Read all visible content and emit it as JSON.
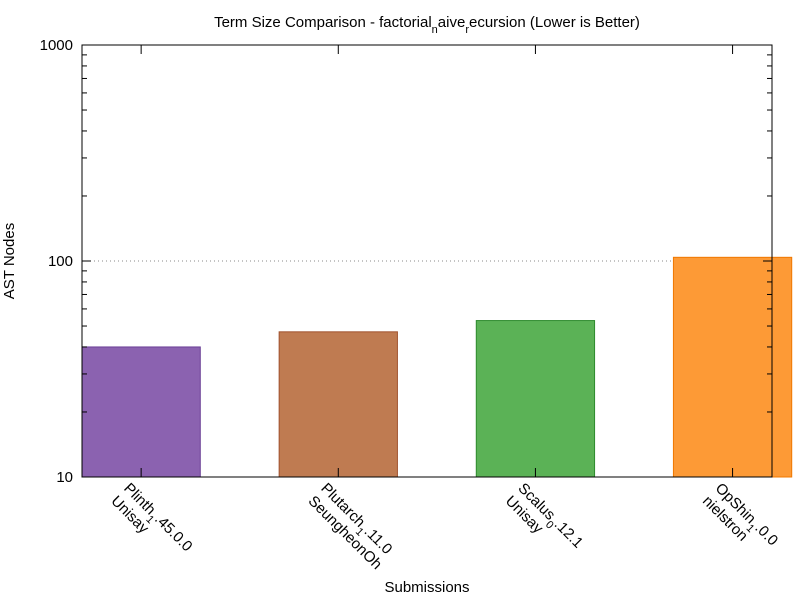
{
  "chart_data": {
    "type": "bar",
    "title_parts": [
      {
        "t": "Term Size Comparison - factorial",
        "sub": false
      },
      {
        "t": "n",
        "sub": true
      },
      {
        "t": "aive",
        "sub": false
      },
      {
        "t": "r",
        "sub": true
      },
      {
        "t": "ecursion (Lower is Better)",
        "sub": false
      }
    ],
    "xlabel": "Submissions",
    "ylabel": "AST Nodes",
    "yscale": "log",
    "ylim": [
      10,
      1000
    ],
    "yticks": [
      {
        "value": 10,
        "label": "10"
      },
      {
        "value": 100,
        "label": "100"
      },
      {
        "value": 1000,
        "label": "1000"
      }
    ],
    "grid": "y-major",
    "categories": [
      {
        "line1": [
          {
            "t": "Plinth",
            "sub": false
          },
          {
            "t": "1",
            "sub": true
          },
          {
            "t": ".45.0.0",
            "sub": false
          }
        ],
        "line2": "Unisay"
      },
      {
        "line1": [
          {
            "t": "Plutarch",
            "sub": false
          },
          {
            "t": "1",
            "sub": true
          },
          {
            "t": ".11.0",
            "sub": false
          }
        ],
        "line2": "SeungheonOh"
      },
      {
        "line1": [
          {
            "t": "Scalus",
            "sub": false
          },
          {
            "t": "0",
            "sub": true
          },
          {
            "t": ".12.1",
            "sub": false
          }
        ],
        "line2": "Unisay"
      },
      {
        "line1": [
          {
            "t": "OpShin",
            "sub": false
          },
          {
            "t": "1",
            "sub": true
          },
          {
            "t": ".0.0",
            "sub": false
          }
        ],
        "line2": "nielstron"
      }
    ],
    "values": [
      40,
      47,
      53,
      104
    ],
    "colors": [
      "#8b62b0",
      "#bf7b51",
      "#5bb256",
      "#fd9a36"
    ],
    "edge_colors": [
      "#6a3f96",
      "#a0522d",
      "#2e8b2e",
      "#f07800"
    ]
  }
}
